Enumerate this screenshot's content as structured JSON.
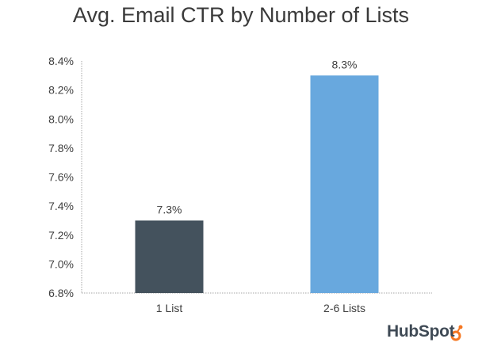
{
  "chart_data": {
    "type": "bar",
    "title": "Avg. Email CTR by Number of Lists",
    "categories": [
      "1 List",
      "2-6 Lists"
    ],
    "values": [
      7.3,
      8.3
    ],
    "data_labels": [
      "7.3%",
      "8.3%"
    ],
    "bar_colors": [
      "#44525d",
      "#68a8de"
    ],
    "ylim": [
      6.8,
      8.4
    ],
    "yticks": [
      6.8,
      7.0,
      7.2,
      7.4,
      7.6,
      7.8,
      8.0,
      8.2,
      8.4
    ],
    "ytick_labels": [
      "6.8%",
      "7.0%",
      "7.2%",
      "7.4%",
      "7.6%",
      "7.8%",
      "8.0%",
      "8.2%",
      "8.4%"
    ],
    "xlabel": "",
    "ylabel": "",
    "grid": false,
    "legend": "none"
  },
  "branding": {
    "logo_text": "HubSpot",
    "logo_color": "#3f4a55",
    "accent": "#f57722"
  }
}
